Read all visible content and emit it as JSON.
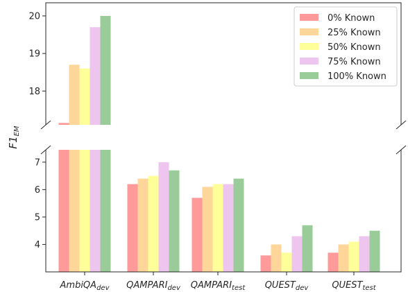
{
  "chart_data": {
    "type": "bar",
    "ylabel": "F1",
    "ylabel_sub": "EM",
    "categories": [
      {
        "base": "AmbiQA",
        "sub": "dev"
      },
      {
        "base": "QAMPARI",
        "sub": "dev"
      },
      {
        "base": "QAMPARI",
        "sub": "test"
      },
      {
        "base": "QUEST",
        "sub": "dev"
      },
      {
        "base": "QUEST",
        "sub": "test"
      }
    ],
    "series": [
      {
        "name": "0% Known",
        "color": "#ff9a9a",
        "values": [
          17.15,
          6.2,
          5.7,
          3.6,
          3.7
        ]
      },
      {
        "name": "25% Known",
        "color": "#ffd699",
        "values": [
          18.7,
          6.4,
          6.1,
          4.0,
          4.0
        ]
      },
      {
        "name": "50% Known",
        "color": "#ffff99",
        "values": [
          18.6,
          6.5,
          6.2,
          3.7,
          4.1
        ]
      },
      {
        "name": "75% Known",
        "color": "#eec5ee",
        "values": [
          19.7,
          7.0,
          6.2,
          4.3,
          4.3
        ]
      },
      {
        "name": "100% Known",
        "color": "#9acc9a",
        "values": [
          20.0,
          6.7,
          6.4,
          4.7,
          4.5
        ]
      }
    ],
    "broken_axis": true,
    "upper_ylim": [
      17.1,
      20.35
    ],
    "upper_ticks": [
      18,
      19,
      20
    ],
    "lower_ylim": [
      3.0,
      7.45
    ],
    "lower_ticks": [
      4,
      5,
      6,
      7
    ],
    "legend_position": "top-right",
    "grid": false
  }
}
